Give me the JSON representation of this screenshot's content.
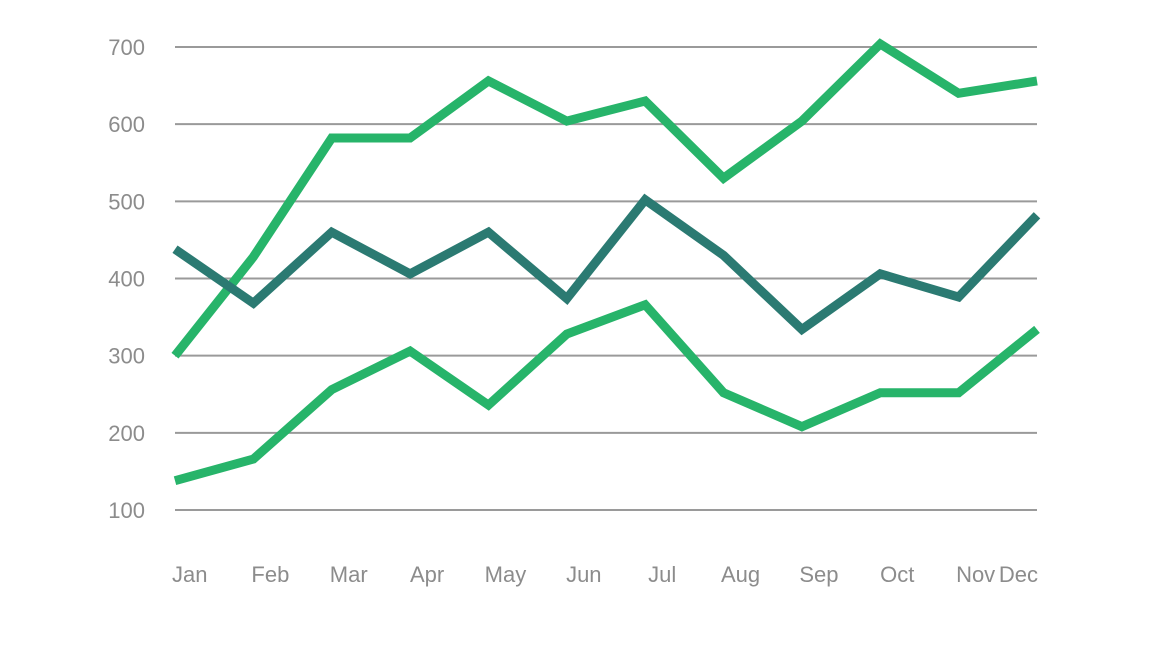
{
  "chart_data": {
    "type": "line",
    "title": "",
    "xlabel": "",
    "ylabel": "",
    "categories": [
      "Jan",
      "Feb",
      "Mar",
      "Apr",
      "May",
      "Jun",
      "Jul",
      "Aug",
      "Sep",
      "Oct",
      "Nov",
      "Dec"
    ],
    "yticks": [
      100,
      200,
      300,
      400,
      500,
      600,
      700
    ],
    "ylim": [
      100,
      700
    ],
    "grid": true,
    "legend": "none",
    "series": [
      {
        "color": "#27b46a",
        "values": [
          300,
          428,
          582,
          582,
          656,
          604,
          630,
          530,
          604,
          704,
          640,
          656
        ]
      },
      {
        "color": "#2b7a72",
        "values": [
          438,
          368,
          460,
          406,
          460,
          374,
          502,
          430,
          334,
          406,
          376,
          482
        ]
      },
      {
        "color": "#27b46a",
        "values": [
          138,
          166,
          256,
          306,
          236,
          328,
          366,
          252,
          208,
          252,
          252,
          334
        ]
      }
    ]
  }
}
